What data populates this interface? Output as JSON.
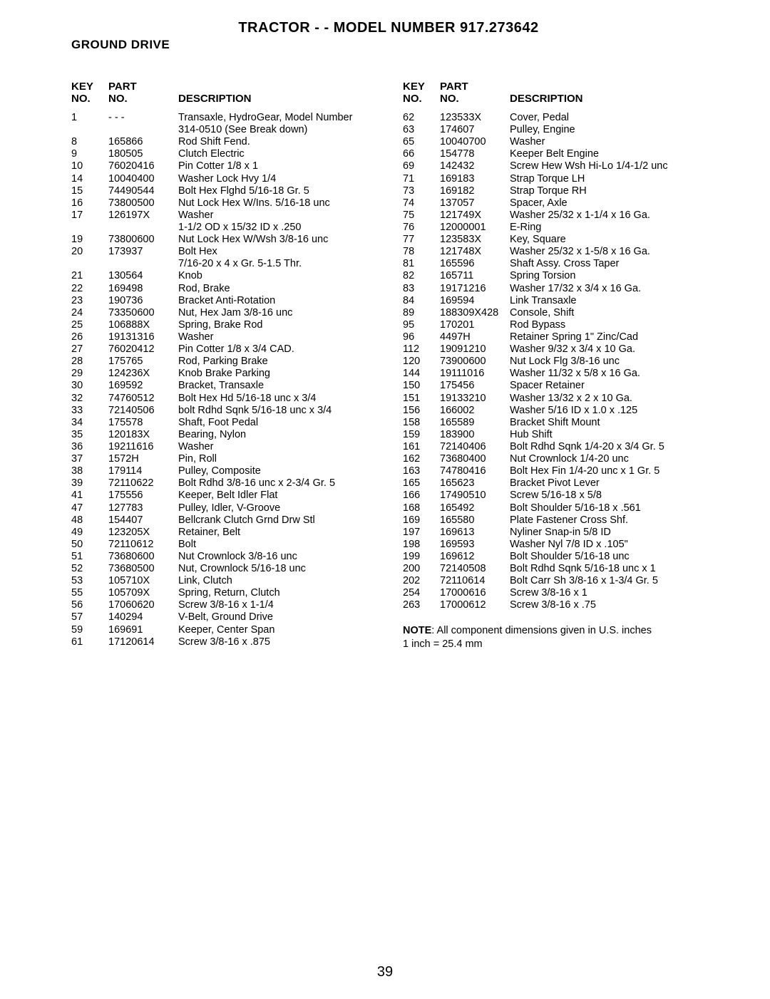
{
  "title": "TRACTOR - - MODEL NUMBER 917.273642",
  "subtitle": "GROUND DRIVE",
  "header": {
    "key": "KEY\nNO.",
    "part": "PART\nNO.",
    "desc": "DESCRIPTION"
  },
  "left_rows": [
    [
      "1",
      "- - -",
      "Transaxle, HydroGear, Model Number 314-0510 (See Break down)"
    ],
    [
      "8",
      "165866",
      "Rod Shift Fend."
    ],
    [
      "9",
      "180505",
      "Clutch Electric"
    ],
    [
      "10",
      "76020416",
      "Pin Cotter 1/8 x 1"
    ],
    [
      "14",
      "10040400",
      "Washer Lock Hvy 1/4"
    ],
    [
      "15",
      "74490544",
      "Bolt Hex Flghd 5/16-18 Gr. 5"
    ],
    [
      "16",
      "73800500",
      "Nut Lock Hex W/Ins. 5/16-18 unc"
    ],
    [
      "17",
      "126197X",
      "Washer\n1-1/2 OD x 15/32 ID x .250"
    ],
    [
      "19",
      "73800600",
      "Nut Lock Hex W/Wsh  3/8-16 unc"
    ],
    [
      "20",
      "173937",
      "Bolt Hex\n7/16-20 x 4 x Gr. 5-1.5 Thr."
    ],
    [
      "21",
      "130564",
      "Knob"
    ],
    [
      "22",
      "169498",
      "Rod, Brake"
    ],
    [
      "23",
      "190736",
      "Bracket Anti-Rotation"
    ],
    [
      "24",
      "73350600",
      "Nut, Hex Jam  3/8-16 unc"
    ],
    [
      "25",
      "106888X",
      "Spring, Brake Rod"
    ],
    [
      "26",
      "19131316",
      "Washer"
    ],
    [
      "27",
      "76020412",
      "Pin Cotter  1/8 x 3/4 CAD."
    ],
    [
      "28",
      "175765",
      "Rod, Parking Brake"
    ],
    [
      "29",
      "124236X",
      "Knob Brake Parking"
    ],
    [
      "30",
      "169592",
      "Bracket, Transaxle"
    ],
    [
      "32",
      "74760512",
      "Bolt Hex Hd  5/16-18 unc x 3/4"
    ],
    [
      "33",
      "72140506",
      "bolt Rdhd Sqnk 5/16-18 unc x 3/4"
    ],
    [
      "34",
      "175578",
      "Shaft, Foot Pedal"
    ],
    [
      "35",
      "120183X",
      "Bearing, Nylon"
    ],
    [
      "36",
      "19211616",
      "Washer"
    ],
    [
      "37",
      "1572H",
      "Pin, Roll"
    ],
    [
      "38",
      "179114",
      "Pulley, Composite"
    ],
    [
      "39",
      "72110622",
      "Bolt Rdhd 3/8-16 unc x 2-3/4 Gr. 5"
    ],
    [
      "41",
      "175556",
      "Keeper, Belt Idler Flat"
    ],
    [
      "47",
      "127783",
      "Pulley, Idler, V-Groove"
    ],
    [
      "48",
      "154407",
      "Bellcrank Clutch Grnd Drw Stl"
    ],
    [
      "49",
      "123205X",
      "Retainer, Belt"
    ],
    [
      "50",
      "72110612",
      "Bolt"
    ],
    [
      "51",
      "73680600",
      "Nut Crownlock  3/8-16 unc"
    ],
    [
      "52",
      "73680500",
      "Nut, Crownlock  5/16-18 unc"
    ],
    [
      "53",
      "105710X",
      "Link, Clutch"
    ],
    [
      "55",
      "105709X",
      "Spring, Return, Clutch"
    ],
    [
      "56",
      "17060620",
      "Screw 3/8-16 x 1-1/4"
    ],
    [
      "57",
      "140294",
      "V-Belt, Ground Drive"
    ],
    [
      "59",
      "169691",
      "Keeper, Center Span"
    ],
    [
      "61",
      "17120614",
      "Screw 3/8-16 x .875"
    ]
  ],
  "right_rows": [
    [
      "62",
      "123533X",
      "Cover, Pedal"
    ],
    [
      "63",
      "174607",
      "Pulley, Engine"
    ],
    [
      "65",
      "10040700",
      "Washer"
    ],
    [
      "66",
      "154778",
      "Keeper Belt Engine"
    ],
    [
      "69",
      "142432",
      "Screw Hew Wsh Hi-Lo 1/4-1/2 unc"
    ],
    [
      "71",
      "169183",
      "Strap Torque LH"
    ],
    [
      "73",
      "169182",
      "Strap Torque RH"
    ],
    [
      "74",
      "137057",
      "Spacer, Axle"
    ],
    [
      "75",
      "121749X",
      "Washer  25/32 x 1-1/4 x 16 Ga."
    ],
    [
      "76",
      "12000001",
      "E-Ring"
    ],
    [
      "77",
      "123583X",
      "Key, Square"
    ],
    [
      "78",
      "121748X",
      "Washer  25/32 x 1-5/8 x 16 Ga."
    ],
    [
      "81",
      "165596",
      "Shaft Assy. Cross Taper"
    ],
    [
      "82",
      "165711",
      "Spring Torsion"
    ],
    [
      "83",
      "19171216",
      "Washer 17/32 x 3/4 x 16 Ga."
    ],
    [
      "84",
      "169594",
      "Link Transaxle"
    ],
    [
      "89",
      "188309X428",
      "Console, Shift"
    ],
    [
      "95",
      "170201",
      "Rod Bypass"
    ],
    [
      "96",
      "4497H",
      "Retainer Spring 1\" Zinc/Cad"
    ],
    [
      "112",
      "19091210",
      "Washer 9/32 x 3/4 x 10 Ga."
    ],
    [
      "120",
      "73900600",
      "Nut Lock Flg 3/8-16 unc"
    ],
    [
      "144",
      "19111016",
      "Washer 11/32 x 5/8 x 16 Ga."
    ],
    [
      "150",
      "175456",
      "Spacer Retainer"
    ],
    [
      "151",
      "19133210",
      "Washer 13/32 x 2 x 10 Ga."
    ],
    [
      "156",
      "166002",
      "Washer 5/16 ID x 1.0 x .125"
    ],
    [
      "158",
      "165589",
      "Bracket Shift Mount"
    ],
    [
      "159",
      "183900",
      "Hub Shift"
    ],
    [
      "161",
      "72140406",
      "Bolt Rdhd Sqnk 1/4-20 x 3/4 Gr. 5"
    ],
    [
      "162",
      "73680400",
      "Nut Crownlock 1/4-20 unc"
    ],
    [
      "163",
      "74780416",
      "Bolt Hex Fin 1/4-20 unc x 1 Gr. 5"
    ],
    [
      "165",
      "165623",
      "Bracket Pivot Lever"
    ],
    [
      "166",
      "17490510",
      "Screw 5/16-18 x 5/8"
    ],
    [
      "168",
      "165492",
      "Bolt Shoulder 5/16-18 x .561"
    ],
    [
      "169",
      "165580",
      "Plate Fastener Cross Shf."
    ],
    [
      "197",
      "169613",
      "Nyliner Snap-in 5/8 ID"
    ],
    [
      "198",
      "169593",
      "Washer Nyl 7/8 ID x .105\""
    ],
    [
      "199",
      "169612",
      "Bolt Shoulder 5/16-18 unc"
    ],
    [
      "200",
      "72140508",
      "Bolt Rdhd Sqnk 5/16-18 unc x 1"
    ],
    [
      "202",
      "72110614",
      "Bolt Carr Sh 3/8-16 x 1-3/4 Gr. 5"
    ],
    [
      "254",
      "17000616",
      "Screw 3/8-16 x 1"
    ],
    [
      "263",
      "17000612",
      "Screw 3/8-16 x .75"
    ]
  ],
  "note_bold": "NOTE",
  "note_text": ": All component dimensions given in U.S. inches",
  "note_line2": "1 inch = 25.4 mm",
  "page_number": "39"
}
